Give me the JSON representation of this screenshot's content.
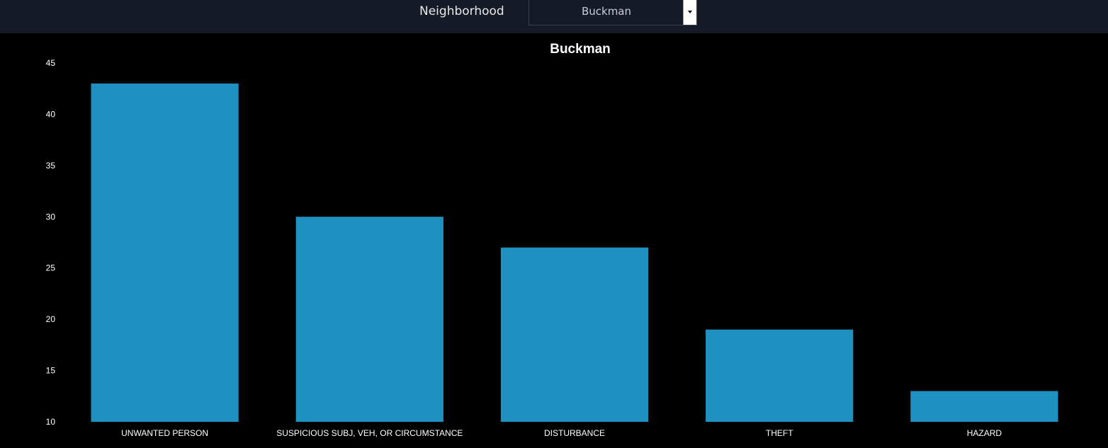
{
  "filter": {
    "label": "Neighborhood",
    "selected": "Buckman"
  },
  "colors": {
    "bar": "#1f91c1",
    "background": "#000000",
    "topbar": "#141a26",
    "text": "#ffffff"
  },
  "chart_data": {
    "type": "bar",
    "title": "Buckman",
    "xlabel": "",
    "ylabel": "",
    "categories": [
      "UNWANTED PERSON",
      "SUSPICIOUS SUBJ, VEH, OR CIRCUMSTANCE",
      "DISTURBANCE",
      "THEFT",
      "HAZARD"
    ],
    "values": [
      43,
      30,
      27,
      19,
      13
    ],
    "ylim": [
      10,
      45
    ],
    "yticks": [
      10,
      15,
      20,
      25,
      30,
      35,
      40,
      45
    ],
    "grid": false,
    "legend": "none"
  }
}
